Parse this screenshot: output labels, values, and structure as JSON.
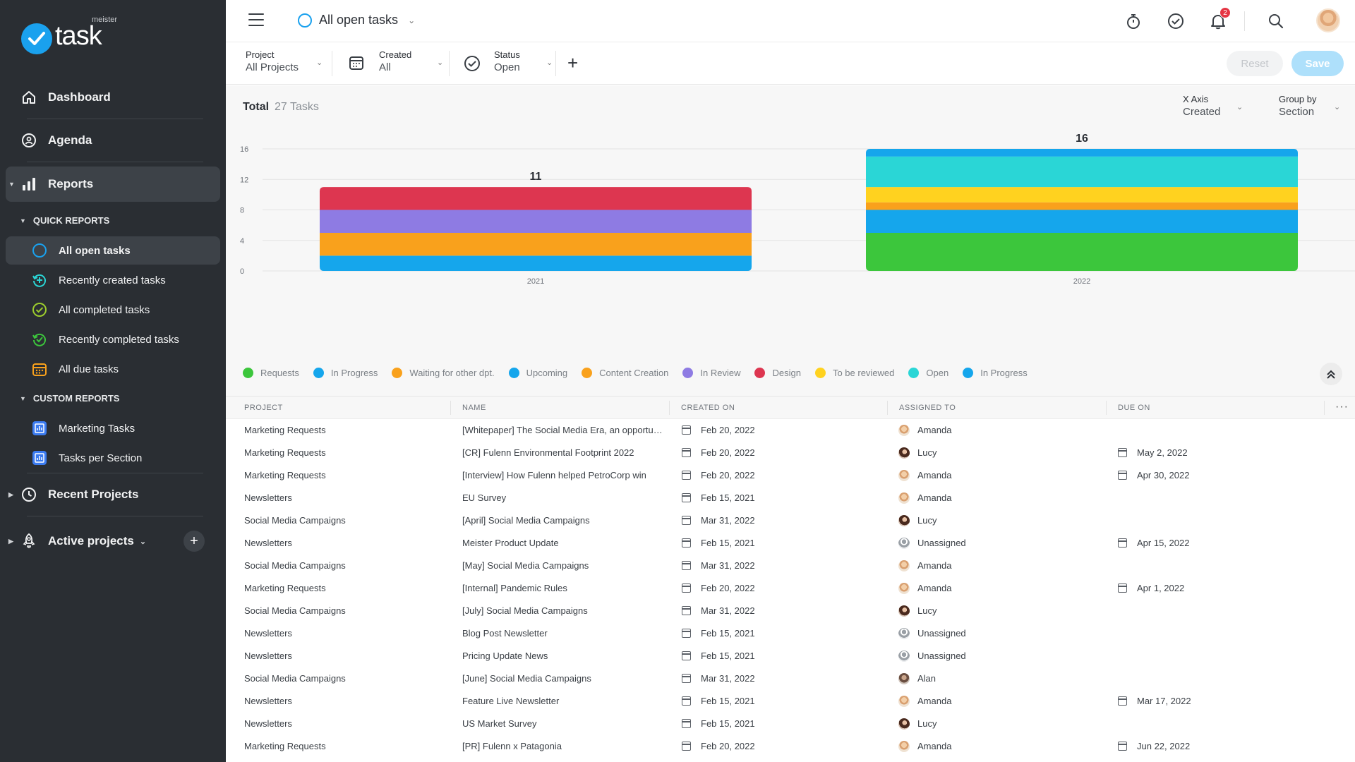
{
  "app": {
    "logo_small": "meister",
    "logo_big": "task"
  },
  "sidebar": {
    "dashboard": "Dashboard",
    "agenda": "Agenda",
    "reports": "Reports",
    "quick_reports_title": "QUICK REPORTS",
    "quick_reports": [
      {
        "label": "All open tasks",
        "icon": "open-circle-icon",
        "active": true
      },
      {
        "label": "Recently created tasks",
        "icon": "recent-created-icon"
      },
      {
        "label": "All completed tasks",
        "icon": "completed-check-icon"
      },
      {
        "label": "Recently completed tasks",
        "icon": "recent-completed-icon"
      },
      {
        "label": "All due tasks",
        "icon": "due-calendar-icon"
      }
    ],
    "custom_reports_title": "CUSTOM REPORTS",
    "custom_reports": [
      {
        "label": "Marketing Tasks",
        "icon": "report-icon"
      },
      {
        "label": "Tasks per Section",
        "icon": "report-icon"
      }
    ],
    "recent_projects": "Recent Projects",
    "active_projects": "Active projects"
  },
  "topbar": {
    "view_title": "All open tasks",
    "notification_count": "2"
  },
  "filters": {
    "project_label": "Project",
    "project_value": "All Projects",
    "created_label": "Created",
    "created_value": "All",
    "status_label": "Status",
    "status_value": "Open",
    "reset_label": "Reset",
    "save_label": "Save"
  },
  "summary": {
    "total_label": "Total",
    "count_text": "27 Tasks",
    "x_axis_label": "X Axis",
    "x_axis_value": "Created",
    "group_by_label": "Group by",
    "group_by_value": "Section"
  },
  "colors": {
    "accent": "#1aa1ee",
    "sidebar_bg": "#2a2e33"
  },
  "chart_data": {
    "type": "bar",
    "stacked": true,
    "categories": [
      "2021",
      "2022"
    ],
    "totals": [
      11,
      16
    ],
    "ylim": [
      0,
      16
    ],
    "yticks": [
      0,
      4,
      8,
      12,
      16
    ],
    "grid": true,
    "legend_position": "bottom",
    "series": [
      {
        "name": "Requests",
        "color": "#3cc63c",
        "values": [
          0,
          5
        ]
      },
      {
        "name": "In Progress",
        "color": "#15a6ec",
        "values": [
          2,
          3
        ]
      },
      {
        "name": "Waiting for other dpt.",
        "color": "#f9a11c",
        "values": [
          0,
          1
        ]
      },
      {
        "name": "Upcoming",
        "color": "#15a6ec",
        "values": [
          0,
          0
        ]
      },
      {
        "name": "Content Creation",
        "color": "#f9a11c",
        "values": [
          3,
          0
        ]
      },
      {
        "name": "In Review",
        "color": "#8e7be3",
        "values": [
          3,
          0
        ]
      },
      {
        "name": "Design",
        "color": "#dd3650",
        "values": [
          3,
          0
        ]
      },
      {
        "name": "To be reviewed",
        "color": "#ffd21f",
        "values": [
          0,
          2
        ]
      },
      {
        "name": "Open",
        "color": "#2ad6d6",
        "values": [
          0,
          4
        ]
      },
      {
        "name": "In Progress",
        "color": "#15a6ec",
        "values": [
          0,
          1
        ]
      }
    ]
  },
  "table": {
    "columns": [
      "PROJECT",
      "NAME",
      "CREATED ON",
      "ASSIGNED TO",
      "DUE ON"
    ],
    "rows": [
      {
        "project": "Marketing Requests",
        "name": "[Whitepaper] The Social Media Era, an opportunity for brands",
        "created": "Feb 20, 2022",
        "assignee": "Amanda",
        "avatar": "amanda",
        "due": ""
      },
      {
        "project": "Marketing Requests",
        "name": "[CR] Fulenn Environmental Footprint 2022",
        "created": "Feb 20, 2022",
        "assignee": "Lucy",
        "avatar": "lucy",
        "due": "May 2, 2022"
      },
      {
        "project": "Marketing Requests",
        "name": "[Interview] How Fulenn helped PetroCorp win",
        "created": "Feb 20, 2022",
        "assignee": "Amanda",
        "avatar": "amanda",
        "due": "Apr 30, 2022"
      },
      {
        "project": "Newsletters",
        "name": "EU Survey",
        "created": "Feb 15, 2021",
        "assignee": "Amanda",
        "avatar": "amanda",
        "due": ""
      },
      {
        "project": "Social Media Campaigns",
        "name": "[April] Social Media Campaigns",
        "created": "Mar 31, 2022",
        "assignee": "Lucy",
        "avatar": "lucy",
        "due": ""
      },
      {
        "project": "Newsletters",
        "name": "Meister Product Update",
        "created": "Feb 15, 2021",
        "assignee": "Unassigned",
        "avatar": "un",
        "due": "Apr 15, 2022"
      },
      {
        "project": "Social Media Campaigns",
        "name": "[May] Social Media Campaigns",
        "created": "Mar 31, 2022",
        "assignee": "Amanda",
        "avatar": "amanda",
        "due": ""
      },
      {
        "project": "Marketing Requests",
        "name": "[Internal] Pandemic Rules",
        "created": "Feb 20, 2022",
        "assignee": "Amanda",
        "avatar": "amanda",
        "due": "Apr 1, 2022"
      },
      {
        "project": "Social Media Campaigns",
        "name": "[July] Social Media Campaigns",
        "created": "Mar 31, 2022",
        "assignee": "Lucy",
        "avatar": "lucy",
        "due": ""
      },
      {
        "project": "Newsletters",
        "name": "Blog Post Newsletter",
        "created": "Feb 15, 2021",
        "assignee": "Unassigned",
        "avatar": "un",
        "due": ""
      },
      {
        "project": "Newsletters",
        "name": "Pricing Update News",
        "created": "Feb 15, 2021",
        "assignee": "Unassigned",
        "avatar": "un",
        "due": ""
      },
      {
        "project": "Social Media Campaigns",
        "name": "[June] Social Media Campaigns",
        "created": "Mar 31, 2022",
        "assignee": "Alan",
        "avatar": "alan",
        "due": ""
      },
      {
        "project": "Newsletters",
        "name": "Feature Live Newsletter",
        "created": "Feb 15, 2021",
        "assignee": "Amanda",
        "avatar": "amanda",
        "due": "Mar 17, 2022"
      },
      {
        "project": "Newsletters",
        "name": "US Market Survey",
        "created": "Feb 15, 2021",
        "assignee": "Lucy",
        "avatar": "lucy",
        "due": ""
      },
      {
        "project": "Marketing Requests",
        "name": "[PR] Fulenn x Patagonia",
        "created": "Feb 20, 2022",
        "assignee": "Amanda",
        "avatar": "amanda",
        "due": "Jun 22, 2022"
      }
    ]
  }
}
